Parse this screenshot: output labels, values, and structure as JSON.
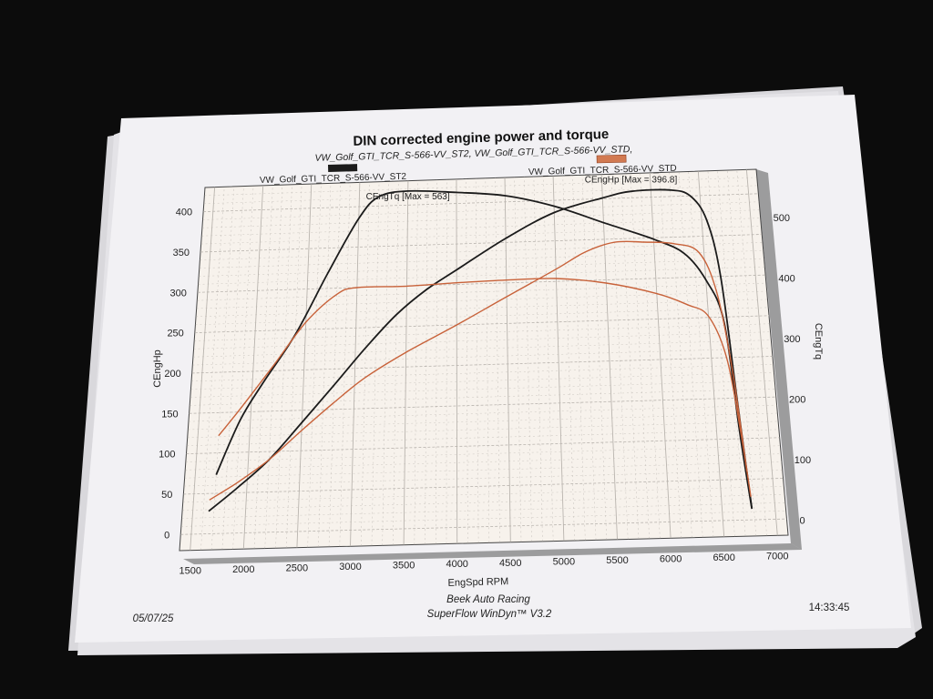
{
  "colors": {
    "series_st2": "#1b1b1b",
    "series_std": "#c8623a",
    "plot_bg": "#f7f2ec",
    "paper": "#f3f2f4",
    "grid": "#b9b4ae"
  },
  "footer": {
    "date": "05/07/25",
    "shop": "Beek Auto Racing",
    "software": "SuperFlow WinDyn™ V3.2",
    "time": "14:33:45"
  },
  "chart_data": {
    "type": "line",
    "title": "DIN corrected engine power and torque",
    "subtitle": "VW_Golf_GTI_TCR_S-566-VV_ST2, VW_Golf_GTI_TCR_S-566-VV_STD,",
    "xlabel": "EngSpd RPM",
    "ylabel_left": "CEngHp",
    "ylabel_right": "CEngTq",
    "xlim": [
      1400,
      7100
    ],
    "ylim_left": [
      -20,
      430
    ],
    "ylim_right": [
      -25,
      580
    ],
    "x_ticks": [
      1500,
      2000,
      2500,
      3000,
      3500,
      4000,
      4500,
      5000,
      5500,
      6000,
      6500,
      7000
    ],
    "y_ticks_left": [
      0,
      50,
      100,
      150,
      200,
      250,
      300,
      350,
      400
    ],
    "y_ticks_right": [
      0,
      100,
      200,
      300,
      400,
      500
    ],
    "grid": true,
    "legend": [
      {
        "label": "VW_Golf_GTI_TCR_S-566-VV_ST2",
        "color": "#1b1b1b",
        "position": "top-left"
      },
      {
        "label": "VW_Golf_GTI_TCR_S-566-VV_STD",
        "color": "#c8623a",
        "position": "top-right"
      }
    ],
    "annotations": [
      {
        "text": "CEngTq [Max = 563]",
        "x": 3500,
        "y_left": 407
      },
      {
        "text": "CEngHp [Max = 396.8]",
        "x": 5800,
        "y_left": 419
      }
    ],
    "series": [
      {
        "name": "VW_Golf_GTI_TCR_S-566-VV_ST2",
        "axis": "right",
        "color": "#1b1b1b",
        "x": [
          1700,
          1900,
          2100,
          2400,
          2700,
          3000,
          3200,
          3500,
          4000,
          4500,
          5000,
          5500,
          6000,
          6300,
          6500,
          6650,
          6720,
          6780
        ],
        "y": [
          100,
          190,
          250,
          330,
          430,
          520,
          555,
          563,
          558,
          550,
          530,
          500,
          470,
          445,
          400,
          330,
          150,
          20
        ]
      },
      {
        "name": "VW_Golf_GTI_TCR_S-566-VV_ST2",
        "axis": "left",
        "color": "#1b1b1b",
        "x": [
          1650,
          1900,
          2200,
          2500,
          2800,
          3100,
          3400,
          3700,
          4000,
          4500,
          5000,
          5500,
          5800,
          6200,
          6400,
          6550,
          6650,
          6720,
          6780
        ],
        "y": [
          28,
          55,
          90,
          135,
          180,
          225,
          265,
          295,
          318,
          355,
          385,
          401,
          408,
          408,
          400,
          370,
          300,
          150,
          15
        ]
      },
      {
        "name": "VW_Golf_GTI_TCR_S-566-VV_STD",
        "axis": "right",
        "color": "#c8623a",
        "x": [
          1700,
          1900,
          2200,
          2500,
          2800,
          3000,
          3500,
          4000,
          4500,
          5000,
          5500,
          6000,
          6300,
          6500,
          6650,
          6730,
          6780
        ],
        "y": [
          165,
          210,
          280,
          350,
          395,
          405,
          405,
          408,
          410,
          410,
          400,
          380,
          360,
          340,
          270,
          150,
          40
        ]
      },
      {
        "name": "VW_Golf_GTI_TCR_S-566-VV_STD",
        "axis": "left",
        "color": "#c8623a",
        "x": [
          1650,
          1900,
          2200,
          2500,
          2800,
          3100,
          3500,
          4000,
          4500,
          5000,
          5300,
          5600,
          5900,
          6200,
          6450,
          6600,
          6700,
          6760
        ],
        "y": [
          42,
          62,
          90,
          125,
          158,
          188,
          218,
          250,
          283,
          315,
          335,
          346,
          345,
          342,
          330,
          280,
          180,
          60
        ]
      }
    ]
  }
}
